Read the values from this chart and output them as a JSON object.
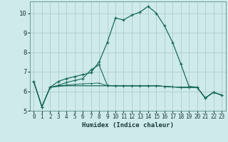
{
  "xlabel": "Humidex (Indice chaleur)",
  "background_color": "#ceeaea",
  "grid_color": "#b0cccc",
  "line_color": "#1a6b5a",
  "x_values": [
    0,
    1,
    2,
    3,
    4,
    5,
    6,
    7,
    8,
    9,
    10,
    11,
    12,
    13,
    14,
    15,
    16,
    17,
    18,
    19,
    20,
    21,
    22,
    23
  ],
  "series": [
    [
      6.5,
      5.2,
      6.2,
      6.5,
      6.65,
      6.75,
      6.85,
      6.95,
      7.5,
      8.5,
      9.75,
      9.65,
      9.9,
      10.05,
      10.35,
      10.0,
      9.35,
      8.5,
      7.4,
      6.25,
      6.2,
      5.65,
      5.95,
      5.8
    ],
    [
      6.5,
      5.2,
      6.2,
      6.3,
      6.45,
      6.55,
      6.65,
      7.1,
      7.35,
      6.3,
      6.28,
      6.28,
      6.28,
      6.28,
      6.28,
      6.28,
      6.25,
      6.22,
      6.2,
      6.2,
      6.2,
      5.65,
      5.95,
      5.8
    ],
    [
      6.5,
      5.2,
      6.2,
      6.28,
      6.32,
      6.35,
      6.38,
      6.4,
      6.42,
      6.28,
      6.28,
      6.28,
      6.28,
      6.28,
      6.28,
      6.28,
      6.25,
      6.22,
      6.2,
      6.2,
      6.2,
      5.65,
      5.95,
      5.8
    ],
    [
      6.5,
      5.2,
      6.2,
      6.25,
      6.28,
      6.28,
      6.28,
      6.28,
      6.28,
      6.28,
      6.28,
      6.28,
      6.28,
      6.28,
      6.28,
      6.28,
      6.25,
      6.22,
      6.2,
      6.2,
      6.2,
      5.65,
      5.95,
      5.8
    ],
    [
      6.5,
      5.2,
      6.2,
      6.25,
      6.28,
      6.28,
      6.28,
      6.28,
      6.28,
      6.28,
      6.28,
      6.28,
      6.28,
      6.28,
      6.28,
      6.28,
      6.25,
      6.22,
      6.2,
      6.2,
      6.2,
      5.65,
      5.95,
      5.8
    ]
  ],
  "ylim": [
    5.0,
    10.6
  ],
  "xlim": [
    -0.5,
    23.5
  ],
  "yticks": [
    5,
    6,
    7,
    8,
    9,
    10
  ],
  "xticks": [
    0,
    1,
    2,
    3,
    4,
    5,
    6,
    7,
    8,
    9,
    10,
    11,
    12,
    13,
    14,
    15,
    16,
    17,
    18,
    19,
    20,
    21,
    22,
    23
  ]
}
